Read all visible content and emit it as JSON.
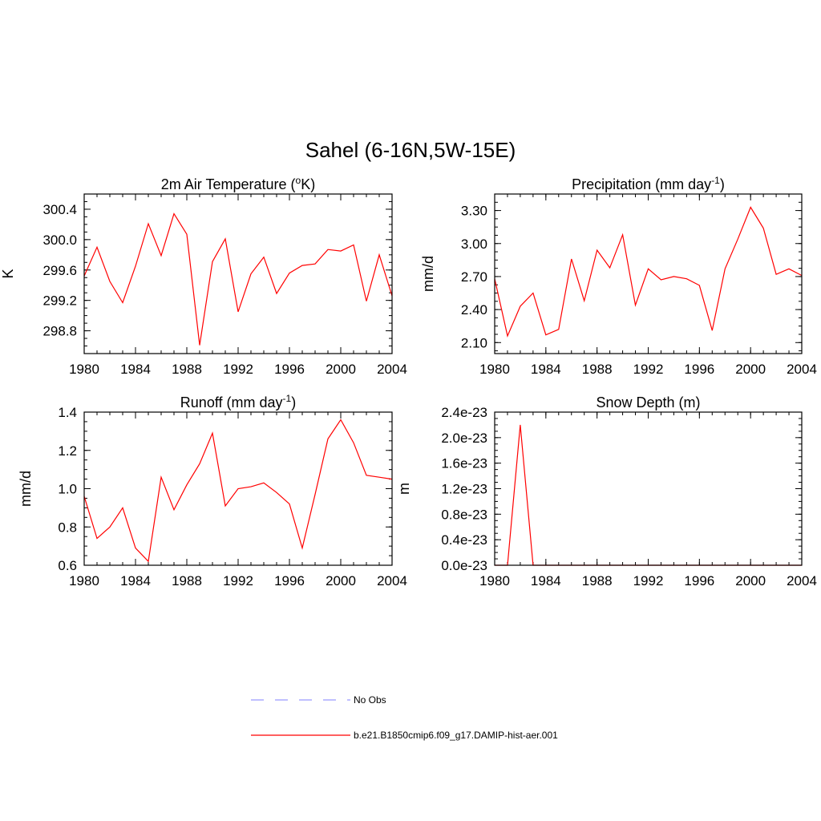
{
  "figure": {
    "title": "Sahel (6-16N,5W-15E)",
    "legend": [
      {
        "label": "No Obs",
        "color": "#9999ff",
        "dash": true
      },
      {
        "label": "b.e21.B1850cmip6.f09_g17.DAMIP-hist-aer.001",
        "color": "#ff0000",
        "dash": false
      }
    ]
  },
  "chart_data": [
    {
      "type": "line",
      "title": "2m Air Temperature (",
      "title_sup": "o",
      "title_after": "K)",
      "ylabel": "K",
      "xlim": [
        1980,
        2004
      ],
      "ylim": [
        298.5,
        300.6
      ],
      "x_ticks": [
        "1980",
        "1984",
        "1988",
        "1992",
        "1996",
        "2000",
        "2004"
      ],
      "y_ticks": [
        298.8,
        299.2,
        299.6,
        300.0,
        300.4
      ],
      "y_tick_labels": [
        "298.8",
        "299.2",
        "299.6",
        "300.0",
        "300.4"
      ],
      "series": [
        {
          "color": "#ff0000",
          "x": [
            1980,
            1981,
            1982,
            1983,
            1984,
            1985,
            1986,
            1987,
            1988,
            1989,
            1990,
            1991,
            1992,
            1993,
            1994,
            1995,
            1996,
            1997,
            1998,
            1999,
            2000,
            2001,
            2002,
            2003,
            2004
          ],
          "values": [
            299.52,
            299.9,
            299.45,
            299.17,
            299.65,
            300.21,
            299.79,
            300.34,
            300.07,
            298.61,
            299.71,
            300.01,
            299.05,
            299.55,
            299.77,
            299.29,
            299.56,
            299.66,
            299.68,
            299.87,
            299.85,
            299.93,
            299.19,
            299.8,
            299.26
          ]
        }
      ]
    },
    {
      "type": "line",
      "title": "Precipitation (mm day",
      "title_sup": "-1",
      "title_after": ")",
      "ylabel": "mm/d",
      "xlim": [
        1980,
        2004
      ],
      "ylim": [
        2.0,
        3.45
      ],
      "x_ticks": [
        "1980",
        "1984",
        "1988",
        "1992",
        "1996",
        "2000",
        "2004"
      ],
      "y_ticks": [
        2.1,
        2.4,
        2.7,
        3.0,
        3.3
      ],
      "y_tick_labels": [
        "2.10",
        "2.40",
        "2.70",
        "3.00",
        "3.30"
      ],
      "series": [
        {
          "color": "#ff0000",
          "x": [
            1980,
            1981,
            1982,
            1983,
            1984,
            1985,
            1986,
            1987,
            1988,
            1989,
            1990,
            1991,
            1992,
            1993,
            1994,
            1995,
            1996,
            1997,
            1998,
            1999,
            2000,
            2001,
            2002,
            2003,
            2004
          ],
          "values": [
            2.68,
            2.16,
            2.43,
            2.55,
            2.17,
            2.22,
            2.86,
            2.48,
            2.94,
            2.78,
            3.08,
            2.44,
            2.77,
            2.67,
            2.7,
            2.68,
            2.62,
            2.21,
            2.77,
            3.04,
            3.33,
            3.14,
            2.72,
            2.77,
            2.71
          ]
        }
      ]
    },
    {
      "type": "line",
      "title": "Runoff (mm day",
      "title_sup": "-1",
      "title_after": ")",
      "ylabel": "mm/d",
      "xlim": [
        1980,
        2004
      ],
      "ylim": [
        0.6,
        1.4
      ],
      "x_ticks": [
        "1980",
        "1984",
        "1988",
        "1992",
        "1996",
        "2000",
        "2004"
      ],
      "y_ticks": [
        0.6,
        0.8,
        1.0,
        1.2,
        1.4
      ],
      "y_tick_labels": [
        "0.6",
        "0.8",
        "1.0",
        "1.2",
        "1.4"
      ],
      "series": [
        {
          "color": "#ff0000",
          "x": [
            1980,
            1981,
            1982,
            1983,
            1984,
            1985,
            1986,
            1987,
            1988,
            1989,
            1990,
            1991,
            1992,
            1993,
            1994,
            1995,
            1996,
            1997,
            1998,
            1999,
            2000,
            2001,
            2002,
            2003,
            2004
          ],
          "values": [
            0.96,
            0.74,
            0.8,
            0.9,
            0.69,
            0.62,
            1.06,
            0.89,
            1.02,
            1.13,
            1.29,
            0.91,
            1.0,
            1.01,
            1.03,
            0.98,
            0.92,
            0.69,
            0.97,
            1.26,
            1.36,
            1.24,
            1.07,
            1.06,
            1.05
          ]
        }
      ]
    },
    {
      "type": "line",
      "title": "Snow Depth (m)",
      "title_sup": "",
      "title_after": "",
      "ylabel": "m",
      "xlim": [
        1980,
        2004
      ],
      "ylim": [
        0,
        2.4e-23
      ],
      "x_ticks": [
        "1980",
        "1984",
        "1988",
        "1992",
        "1996",
        "2000",
        "2004"
      ],
      "y_ticks": [
        0,
        4e-24,
        8e-24,
        1.2e-23,
        1.6e-23,
        2e-23,
        2.4e-23
      ],
      "y_tick_labels": [
        "0.0e-23",
        "0.4e-23",
        "0.8e-23",
        "1.2e-23",
        "1.6e-23",
        "2.0e-23",
        "2.4e-23"
      ],
      "series": [
        {
          "color": "#ff0000",
          "x": [
            1980,
            1981,
            1982,
            1983,
            1984,
            1985,
            1986,
            1987,
            1988,
            1989,
            1990,
            1991,
            1992,
            1993,
            1994,
            1995,
            1996,
            1997,
            1998,
            1999,
            2000,
            2001,
            2002,
            2003,
            2004
          ],
          "values": [
            0,
            0,
            2.2e-23,
            0,
            0,
            0,
            0,
            0,
            0,
            0,
            0,
            0,
            0,
            0,
            0,
            0,
            0,
            0,
            0,
            0,
            0,
            0,
            0,
            0,
            0
          ]
        }
      ]
    }
  ]
}
